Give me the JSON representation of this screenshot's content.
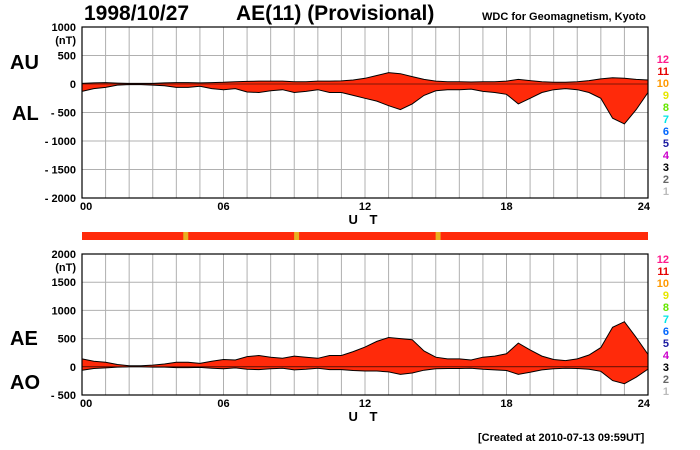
{
  "header": {
    "date": "1998/10/27",
    "title": "AE(11) (Provisional)",
    "source": "WDC for Geomagnetism, Kyoto"
  },
  "footer": {
    "created": "[Created at 2010-07-13 09:59UT]"
  },
  "colors": {
    "fill": "#ff2a0a",
    "outline": "#000000",
    "grid": "#b0b0b0",
    "warn": "#e8b020"
  },
  "station_scale": [
    {
      "label": "12",
      "color": "#ff1a8c"
    },
    {
      "label": "11",
      "color": "#e60000"
    },
    {
      "label": "10",
      "color": "#ff9900"
    },
    {
      "label": "9",
      "color": "#e6e600"
    },
    {
      "label": "8",
      "color": "#66e600"
    },
    {
      "label": "7",
      "color": "#00e6e6"
    },
    {
      "label": "6",
      "color": "#0066ff"
    },
    {
      "label": "5",
      "color": "#1a1aa0"
    },
    {
      "label": "4",
      "color": "#cc00cc"
    },
    {
      "label": "3",
      "color": "#000000"
    },
    {
      "label": "2",
      "color": "#666666"
    },
    {
      "label": "1",
      "color": "#bbbbbb"
    }
  ],
  "chart_data": [
    {
      "type": "area",
      "panel": "AU/AL",
      "unit": "(nT)",
      "ylim": [
        -2000,
        1000
      ],
      "yticks": [
        "1000",
        "500",
        "0",
        "- 500",
        "- 1000",
        "- 1500",
        "- 2000"
      ],
      "ytick_values": [
        1000,
        500,
        0,
        -500,
        -1000,
        -1500,
        -2000
      ],
      "xlabel": "U T",
      "xticks": [
        "00",
        "06",
        "12",
        "18",
        "24"
      ],
      "xtick_values": [
        0,
        6,
        12,
        18,
        24
      ],
      "xlim": [
        0,
        24
      ],
      "grid": true,
      "series": [
        {
          "name": "AU",
          "x": [
            0,
            0.5,
            1,
            1.5,
            2,
            2.5,
            3,
            3.5,
            4,
            4.5,
            5,
            5.5,
            6,
            6.5,
            7,
            7.5,
            8,
            8.5,
            9,
            9.5,
            10,
            10.5,
            11,
            11.5,
            12,
            12.5,
            13,
            13.5,
            14,
            14.5,
            15,
            15.5,
            16,
            16.5,
            17,
            17.5,
            18,
            18.5,
            19,
            19.5,
            20,
            20.5,
            21,
            21.5,
            22,
            22.5,
            23,
            23.5,
            24
          ],
          "values": [
            10,
            20,
            25,
            15,
            10,
            10,
            10,
            20,
            25,
            25,
            20,
            25,
            30,
            40,
            45,
            50,
            50,
            50,
            40,
            40,
            50,
            50,
            55,
            70,
            100,
            150,
            200,
            180,
            130,
            80,
            50,
            40,
            40,
            35,
            40,
            40,
            50,
            80,
            60,
            40,
            30,
            30,
            40,
            60,
            90,
            110,
            100,
            80,
            70
          ]
        },
        {
          "name": "AL",
          "x": [
            0,
            0.5,
            1,
            1.5,
            2,
            2.5,
            3,
            3.5,
            4,
            4.5,
            5,
            5.5,
            6,
            6.5,
            7,
            7.5,
            8,
            8.5,
            9,
            9.5,
            10,
            10.5,
            11,
            11.5,
            12,
            12.5,
            13,
            13.5,
            14,
            14.5,
            15,
            15.5,
            16,
            16.5,
            17,
            17.5,
            18,
            18.5,
            19,
            19.5,
            20,
            20.5,
            21,
            21.5,
            22,
            22.5,
            23,
            23.5,
            24
          ],
          "values": [
            -130,
            -80,
            -60,
            -20,
            -10,
            -10,
            -20,
            -30,
            -60,
            -60,
            -40,
            -80,
            -100,
            -80,
            -140,
            -150,
            -120,
            -100,
            -150,
            -130,
            -100,
            -150,
            -150,
            -200,
            -250,
            -300,
            -380,
            -450,
            -350,
            -200,
            -120,
            -100,
            -100,
            -90,
            -130,
            -150,
            -180,
            -350,
            -250,
            -150,
            -100,
            -80,
            -100,
            -150,
            -250,
            -600,
            -700,
            -450,
            -150
          ]
        }
      ]
    },
    {
      "type": "area",
      "panel": "AE/AO",
      "unit": "(nT)",
      "ylim": [
        -500,
        2000
      ],
      "yticks": [
        "2000",
        "1500",
        "1000",
        "500",
        "0",
        "- 500"
      ],
      "ytick_values": [
        2000,
        1500,
        1000,
        500,
        0,
        -500
      ],
      "xlabel": "U T",
      "xticks": [
        "00",
        "06",
        "12",
        "18",
        "24"
      ],
      "xtick_values": [
        0,
        6,
        12,
        18,
        24
      ],
      "xlim": [
        0,
        24
      ],
      "grid": true,
      "series": [
        {
          "name": "AE",
          "x": [
            0,
            0.5,
            1,
            1.5,
            2,
            2.5,
            3,
            3.5,
            4,
            4.5,
            5,
            5.5,
            6,
            6.5,
            7,
            7.5,
            8,
            8.5,
            9,
            9.5,
            10,
            10.5,
            11,
            11.5,
            12,
            12.5,
            13,
            13.5,
            14,
            14.5,
            15,
            15.5,
            16,
            16.5,
            17,
            17.5,
            18,
            18.5,
            19,
            19.5,
            20,
            20.5,
            21,
            21.5,
            22,
            22.5,
            23,
            23.5,
            24
          ],
          "values": [
            140,
            100,
            80,
            40,
            20,
            20,
            30,
            50,
            80,
            80,
            60,
            100,
            130,
            120,
            180,
            200,
            170,
            150,
            190,
            170,
            150,
            200,
            200,
            270,
            350,
            450,
            520,
            500,
            480,
            280,
            170,
            140,
            140,
            120,
            170,
            190,
            230,
            420,
            300,
            190,
            130,
            110,
            140,
            210,
            340,
            700,
            800,
            520,
            220
          ]
        },
        {
          "name": "AO",
          "x": [
            0,
            0.5,
            1,
            1.5,
            2,
            2.5,
            3,
            3.5,
            4,
            4.5,
            5,
            5.5,
            6,
            6.5,
            7,
            7.5,
            8,
            8.5,
            9,
            9.5,
            10,
            10.5,
            11,
            11.5,
            12,
            12.5,
            13,
            13.5,
            14,
            14.5,
            15,
            15.5,
            16,
            16.5,
            17,
            17.5,
            18,
            18.5,
            19,
            19.5,
            20,
            20.5,
            21,
            21.5,
            22,
            22.5,
            23,
            23.5,
            24
          ],
          "values": [
            -60,
            -30,
            -20,
            -5,
            0,
            0,
            -5,
            -5,
            -15,
            -15,
            -10,
            -25,
            -35,
            -20,
            -45,
            -50,
            -35,
            -25,
            -55,
            -45,
            -25,
            -50,
            -50,
            -65,
            -75,
            -75,
            -90,
            -135,
            -110,
            -60,
            -35,
            -30,
            -30,
            -25,
            -45,
            -55,
            -65,
            -135,
            -95,
            -55,
            -35,
            -25,
            -30,
            -45,
            -80,
            -245,
            -300,
            -185,
            -40
          ]
        }
      ]
    }
  ],
  "data_quality_bar": {
    "warning_hours": [
      4.4,
      9.1,
      15.1
    ]
  },
  "panel_labels": {
    "top_upper": "AU",
    "top_lower": "AL",
    "bottom_upper": "AE",
    "bottom_lower": "AO"
  }
}
